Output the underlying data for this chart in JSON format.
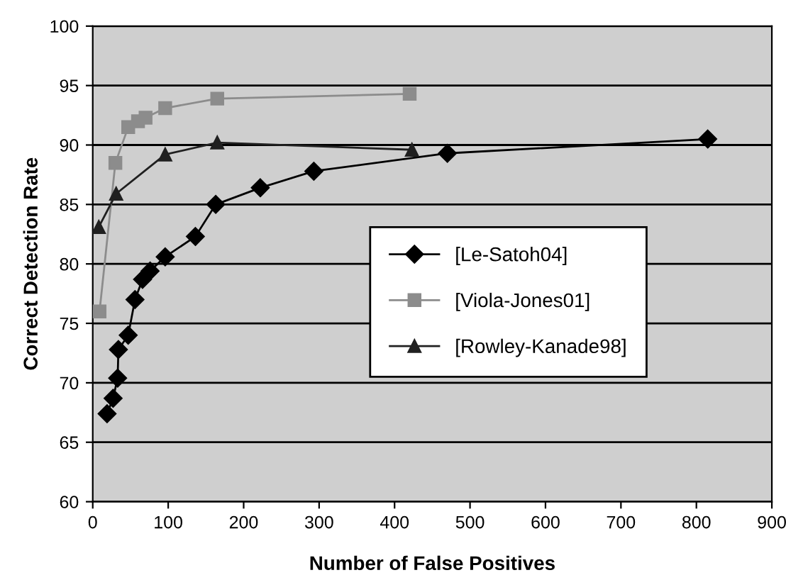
{
  "chart_data": {
    "type": "line",
    "xlabel": "Number of False Positives",
    "ylabel": "Correct Detection Rate",
    "xlim": [
      0,
      900
    ],
    "xticks": [
      0,
      100,
      200,
      300,
      400,
      500,
      600,
      700,
      800,
      900
    ],
    "ylim": [
      60,
      100
    ],
    "yticks": [
      60,
      65,
      70,
      75,
      80,
      85,
      90,
      95,
      100
    ],
    "grid": "y",
    "legend": "right",
    "line_style": "solid",
    "series": [
      {
        "name": "[Le-Satoh04]",
        "color": "#000000",
        "marker": "diamond",
        "x": [
          19,
          27,
          33,
          34,
          47,
          56,
          66,
          76,
          96,
          136,
          163,
          222,
          293,
          470,
          815
        ],
        "values": [
          67.4,
          68.7,
          70.4,
          72.8,
          74.0,
          77.0,
          78.7,
          79.4,
          80.6,
          82.3,
          85.0,
          86.4,
          87.8,
          89.3,
          90.5
        ]
      },
      {
        "name": "[Viola-Jones01]",
        "color": "#8c8c8c",
        "marker": "square",
        "x": [
          9,
          30,
          47,
          60,
          70,
          96,
          165,
          420
        ],
        "values": [
          76.0,
          88.5,
          91.5,
          92.0,
          92.3,
          93.1,
          93.9,
          94.3
        ]
      },
      {
        "name": "[Rowley-Kanade98]",
        "color": "#202020",
        "marker": "triangle",
        "x": [
          8,
          31,
          96,
          165,
          423
        ],
        "values": [
          83.1,
          85.9,
          89.2,
          90.2,
          89.6
        ]
      }
    ]
  }
}
